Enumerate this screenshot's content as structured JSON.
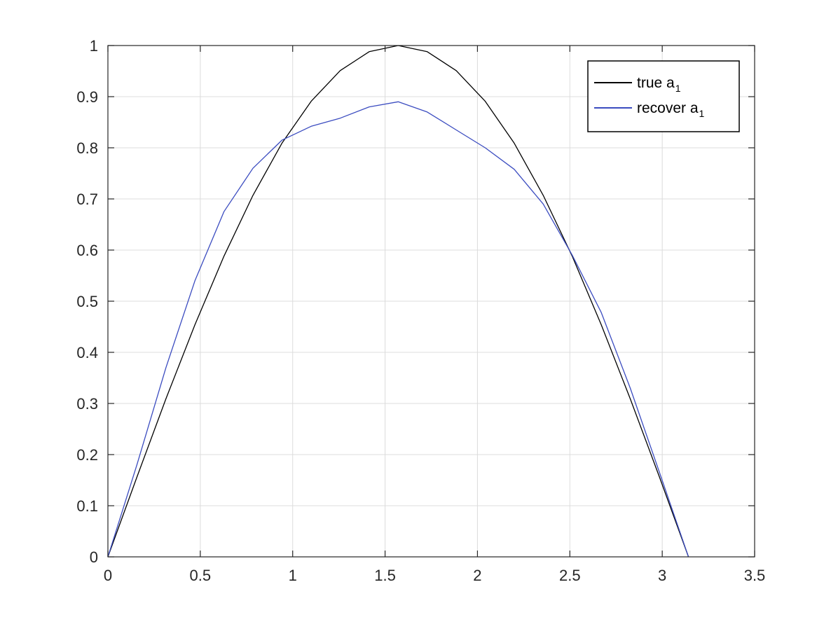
{
  "chart_data": {
    "type": "line",
    "xlim": [
      0,
      3.5
    ],
    "ylim": [
      0,
      1
    ],
    "grid": true,
    "legend_position": "top-right",
    "x_ticks": [
      "0",
      "0.5",
      "1",
      "1.5",
      "2",
      "2.5",
      "3",
      "3.5"
    ],
    "y_ticks": [
      "0",
      "0.1",
      "0.2",
      "0.3",
      "0.4",
      "0.5",
      "0.6",
      "0.7",
      "0.8",
      "0.9",
      "1"
    ],
    "series": [
      {
        "name": "true a",
        "name_subscript": "1",
        "color": "#000000",
        "x": [
          0,
          0.157,
          0.314,
          0.471,
          0.628,
          0.785,
          0.942,
          1.1,
          1.257,
          1.414,
          1.571,
          1.728,
          1.885,
          2.042,
          2.199,
          2.356,
          2.513,
          2.67,
          2.827,
          2.985,
          3.142
        ],
        "y": [
          0,
          0.156,
          0.309,
          0.454,
          0.588,
          0.707,
          0.809,
          0.891,
          0.951,
          0.988,
          1.0,
          0.988,
          0.951,
          0.891,
          0.809,
          0.707,
          0.588,
          0.454,
          0.309,
          0.156,
          0
        ]
      },
      {
        "name": "recover a",
        "name_subscript": "1",
        "color": "#3b4cc0",
        "x": [
          0,
          0.157,
          0.314,
          0.471,
          0.628,
          0.785,
          0.942,
          1.1,
          1.257,
          1.414,
          1.571,
          1.728,
          1.885,
          2.042,
          2.199,
          2.356,
          2.513,
          2.67,
          2.827,
          2.985,
          3.142
        ],
        "y": [
          0,
          0.18,
          0.37,
          0.54,
          0.675,
          0.76,
          0.815,
          0.842,
          0.858,
          0.88,
          0.89,
          0.87,
          0.835,
          0.8,
          0.758,
          0.69,
          0.59,
          0.478,
          0.33,
          0.165,
          0
        ]
      }
    ]
  }
}
